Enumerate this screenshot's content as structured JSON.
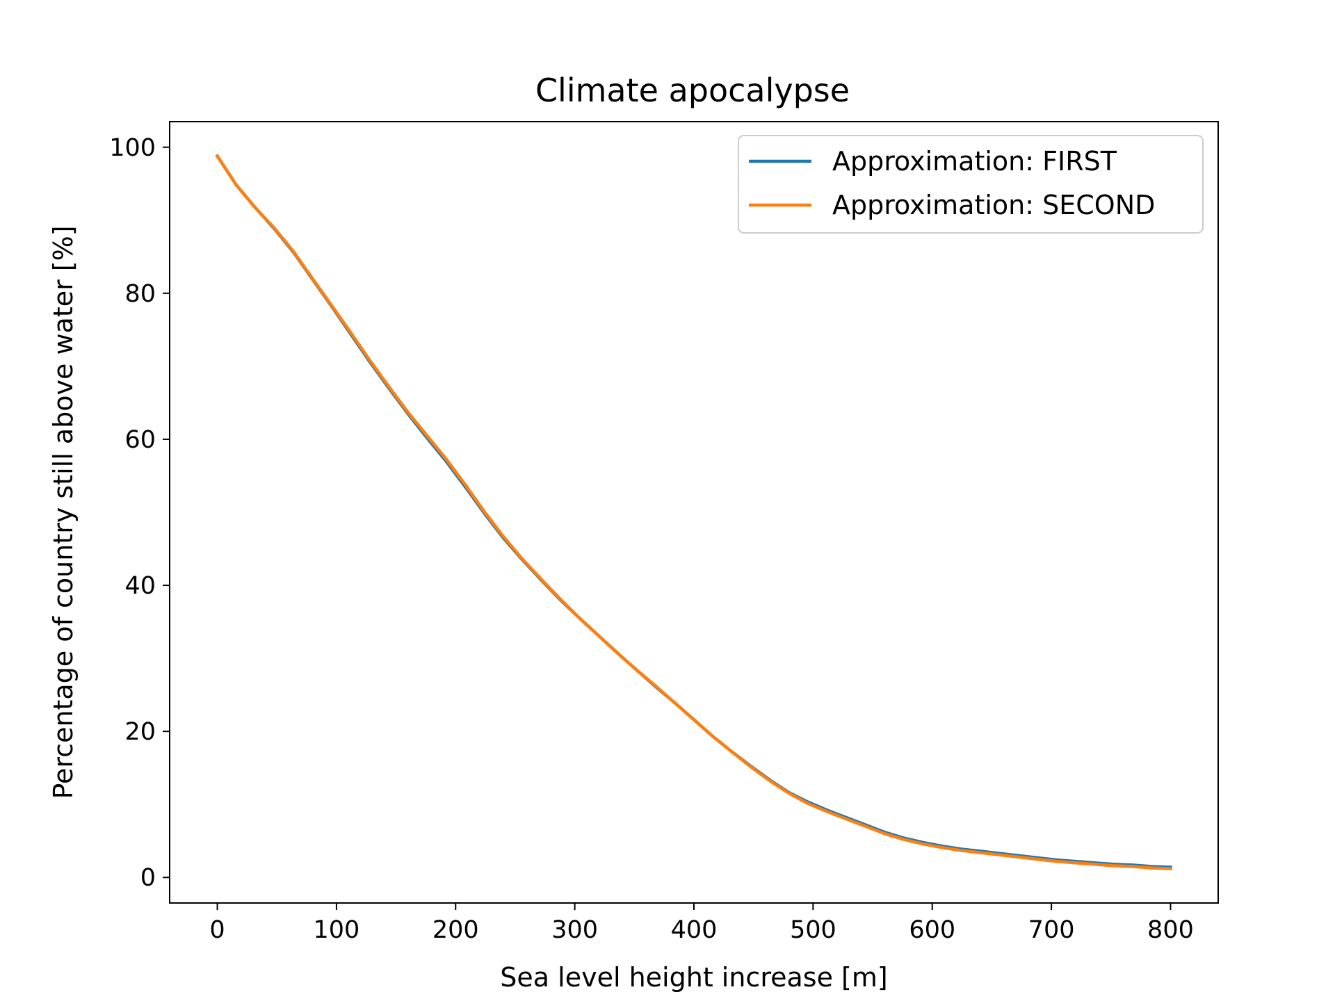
{
  "chart_data": {
    "type": "line",
    "title": "Climate apocalypse",
    "xlabel": "Sea level height increase [m]",
    "ylabel": "Percentage of country still above water [%]",
    "xlim": [
      -40,
      840
    ],
    "ylim": [
      -3.5,
      103.5
    ],
    "xticks": [
      0,
      100,
      200,
      300,
      400,
      500,
      600,
      700,
      800
    ],
    "yticks": [
      0,
      20,
      40,
      60,
      80,
      100
    ],
    "legend_position": "upper right",
    "grid": false,
    "x": [
      0,
      16,
      32,
      48,
      64,
      80,
      96,
      112,
      128,
      144,
      160,
      176,
      192,
      208,
      224,
      240,
      256,
      272,
      288,
      304,
      320,
      336,
      352,
      368,
      384,
      400,
      416,
      432,
      448,
      464,
      480,
      496,
      512,
      528,
      544,
      560,
      576,
      592,
      608,
      624,
      640,
      656,
      672,
      688,
      704,
      720,
      736,
      752,
      768,
      784,
      800
    ],
    "series": [
      {
        "name": "Approximation: FIRST",
        "color": "#1f77b4",
        "values": [
          98.8,
          94.8,
          91.7,
          88.8,
          85.6,
          81.9,
          78.2,
          74.4,
          70.6,
          67.0,
          63.5,
          60.2,
          57.0,
          53.5,
          49.9,
          46.5,
          43.5,
          40.7,
          38.0,
          35.5,
          33.1,
          30.7,
          28.4,
          26.1,
          23.9,
          21.6,
          19.3,
          17.2,
          15.2,
          13.3,
          11.6,
          10.3,
          9.2,
          8.2,
          7.2,
          6.2,
          5.4,
          4.8,
          4.3,
          3.9,
          3.6,
          3.3,
          3.0,
          2.7,
          2.4,
          2.2,
          2.0,
          1.8,
          1.7,
          1.5,
          1.4
        ]
      },
      {
        "name": "Approximation: SECOND",
        "color": "#ff7f0e",
        "values": [
          98.8,
          94.8,
          91.7,
          88.9,
          85.7,
          82.0,
          78.3,
          74.6,
          70.8,
          67.2,
          63.7,
          60.5,
          57.3,
          53.8,
          50.1,
          46.7,
          43.6,
          40.8,
          38.1,
          35.5,
          33.1,
          30.7,
          28.4,
          26.2,
          23.9,
          21.6,
          19.3,
          17.2,
          15.1,
          13.2,
          11.5,
          10.1,
          9.0,
          8.0,
          7.0,
          6.0,
          5.2,
          4.6,
          4.1,
          3.7,
          3.4,
          3.1,
          2.8,
          2.5,
          2.2,
          2.0,
          1.8,
          1.6,
          1.5,
          1.3,
          1.2
        ]
      }
    ]
  }
}
